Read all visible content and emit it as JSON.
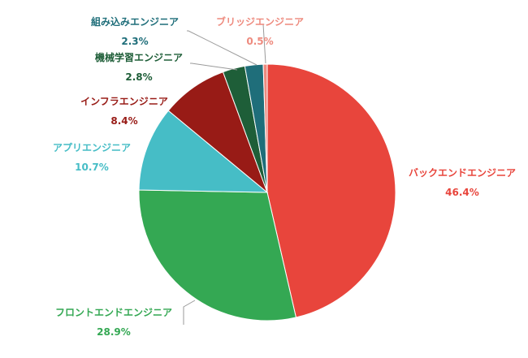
{
  "chart_data": {
    "type": "pie",
    "title": "",
    "start": "top",
    "direction": "clockwise",
    "slices": [
      {
        "label": "バックエンドエンジニア",
        "value": 46.4,
        "pct": "46.4%",
        "color": "#e8453c"
      },
      {
        "label": "フロントエンドエンジニア",
        "value": 28.9,
        "pct": "28.9%",
        "color": "#34a853"
      },
      {
        "label": "アプリエンジニア",
        "value": 10.7,
        "pct": "10.7%",
        "color": "#46bdc6"
      },
      {
        "label": "インフラエンジニア",
        "value": 8.4,
        "pct": "8.4%",
        "color": "#981b16"
      },
      {
        "label": "機械学習エンジニア",
        "value": 2.8,
        "pct": "2.8%",
        "color": "#1e5e38"
      },
      {
        "label": "組み込みエンジニア",
        "value": 2.3,
        "pct": "2.3%",
        "color": "#1f6e7a"
      },
      {
        "label": "ブリッジエンジニア",
        "value": 0.5,
        "pct": "0.5%",
        "color": "#ee8a7e"
      }
    ]
  }
}
